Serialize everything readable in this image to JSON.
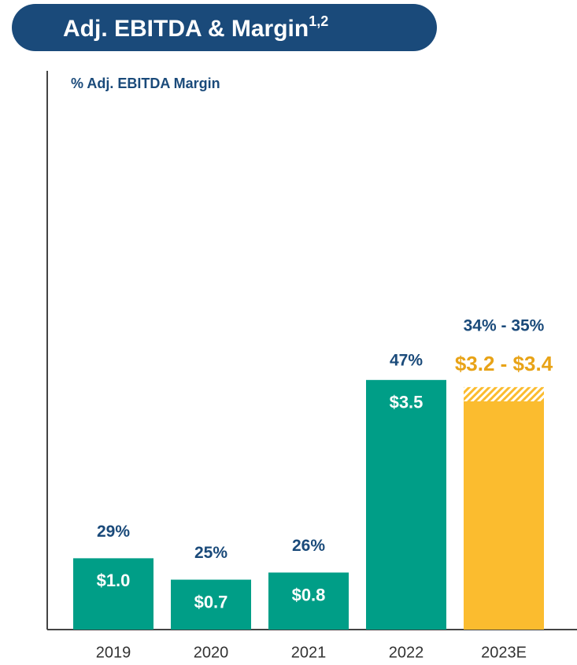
{
  "chart_data": {
    "type": "bar",
    "title": "Adj. EBITDA & Margin",
    "title_superscript": "1,2",
    "subtitle": "% Adj. EBITDA Margin",
    "categories": [
      "2019",
      "2020",
      "2021",
      "2022",
      "2023E"
    ],
    "values": [
      1.0,
      0.7,
      0.8,
      3.5,
      3.2
    ],
    "high": [
      null,
      null,
      null,
      null,
      3.4
    ],
    "value_labels": [
      "$1.0",
      "$0.7",
      "$0.8",
      "$3.5",
      "$3.2 - $3.4"
    ],
    "margin_labels": [
      "29%",
      "25%",
      "26%",
      "47%",
      "34% - 35%"
    ],
    "colors": [
      "#009e87",
      "#009e87",
      "#009e87",
      "#009e87",
      "#fbbc2f"
    ],
    "estimate_label_color": "#e8a317",
    "ylim": [
      0,
      8
    ]
  }
}
